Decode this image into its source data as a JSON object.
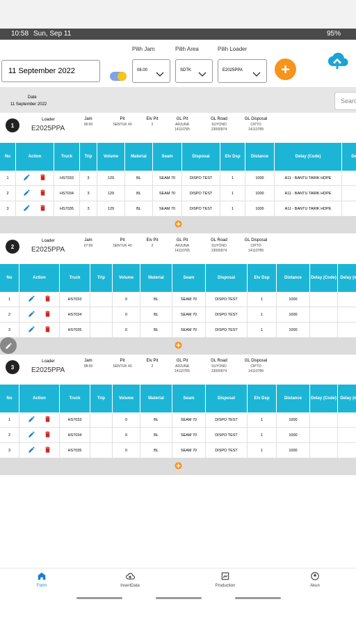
{
  "status_bar": {
    "time": "10:58",
    "date": "Sun, Sep 11",
    "battery": "95%"
  },
  "filters": {
    "date": "11 September 2022",
    "jam_label": "Pilih Jam",
    "jam": "08.00",
    "area_label": "Pilih Area",
    "area": "SDTK",
    "loader_label": "Pilih Loader",
    "loader": "E2025PPA"
  },
  "info_bar": {
    "date_label": "Date",
    "date": "11 September 2022",
    "search_placeholder": "Search"
  },
  "columns": [
    "No",
    "Action",
    "Truck",
    "Trip",
    "Volume",
    "Material",
    "Seam",
    "Disposal",
    "Elv Dsp",
    "Distance",
    "Delay (Code)",
    "Delay (min)"
  ],
  "sections": [
    {
      "number": 1,
      "loader_label": "Loader",
      "loader": "E2025PPA",
      "fields": [
        {
          "label": "Jam",
          "lines": [
            "06:00"
          ]
        },
        {
          "label": "Pit",
          "lines": [
            "SENTUK 40"
          ]
        },
        {
          "label": "Elv Pit",
          "lines": [
            "2"
          ]
        },
        {
          "label": "GL Pit",
          "lines": [
            "ARJUNA",
            "14110765"
          ]
        },
        {
          "label": "GL Road",
          "lines": [
            "SUYONO",
            "23000974"
          ]
        },
        {
          "label": "GL Disposal",
          "lines": [
            "CIPTO",
            "14110789"
          ]
        }
      ],
      "rows": [
        {
          "no": 1,
          "truck": "HS7033",
          "trip": 3,
          "volume": 129,
          "material": "BL",
          "seam": "SEAM 70",
          "disposal": "DISPO TEST",
          "elv_dsp": 1,
          "distance": 1000,
          "delay_code": "A11 - BANTU TARIK HDPE"
        },
        {
          "no": 2,
          "truck": "HS7034",
          "trip": 3,
          "volume": 129,
          "material": "BL",
          "seam": "SEAM 70",
          "disposal": "DISPO TEST",
          "elv_dsp": 1,
          "distance": 1000,
          "delay_code": "A11 - BANTU TARIK HDPE"
        },
        {
          "no": 3,
          "truck": "HS7035",
          "trip": 3,
          "volume": 129,
          "material": "BL",
          "seam": "SEAM 70",
          "disposal": "DISPO TEST",
          "elv_dsp": 1,
          "distance": 1000,
          "delay_code": "A11 - BANTU TARIK HDPE"
        }
      ]
    },
    {
      "number": 2,
      "loader_label": "Loader",
      "loader": "E2025PPA",
      "fields": [
        {
          "label": "Jam",
          "lines": [
            "07:00"
          ]
        },
        {
          "label": "Pit",
          "lines": [
            "SENTUK 40"
          ]
        },
        {
          "label": "Elv Pit",
          "lines": [
            "2"
          ]
        },
        {
          "label": "GL Pit",
          "lines": [
            "ARJUNA",
            "14110765"
          ]
        },
        {
          "label": "GL Road",
          "lines": [
            "SUYONO",
            "23000974"
          ]
        },
        {
          "label": "GL Disposal",
          "lines": [
            "CIPTO",
            "14110789"
          ]
        }
      ],
      "rows": [
        {
          "no": 1,
          "truck": "HS7033",
          "trip": null,
          "volume": 0,
          "material": "BL",
          "seam": "SEAM 70",
          "disposal": "DISPO TEST",
          "elv_dsp": 1,
          "distance": 1000,
          "delay_code": null
        },
        {
          "no": 2,
          "truck": "HS7034",
          "trip": null,
          "volume": 0,
          "material": "BL",
          "seam": "SEAM 70",
          "disposal": "DISPO TEST",
          "elv_dsp": 1,
          "distance": 1000,
          "delay_code": null
        },
        {
          "no": 3,
          "truck": "HS7035",
          "trip": null,
          "volume": 0,
          "material": "BL",
          "seam": "SEAM 70",
          "disposal": "DISPO TEST",
          "elv_dsp": 1,
          "distance": 1000,
          "delay_code": null
        }
      ]
    },
    {
      "number": 3,
      "loader_label": "Loader",
      "loader": "E2025PPA",
      "fields": [
        {
          "label": "Jam",
          "lines": [
            "08:00"
          ]
        },
        {
          "label": "Pit",
          "lines": [
            "SENTUK 40"
          ]
        },
        {
          "label": "Elv Pit",
          "lines": [
            "2"
          ]
        },
        {
          "label": "GL Pit",
          "lines": [
            "ARJUNA",
            "14110765"
          ]
        },
        {
          "label": "GL Road",
          "lines": [
            "SUYONO",
            "23000974"
          ]
        },
        {
          "label": "GL Disposal",
          "lines": [
            "CIPTO",
            "14110789"
          ]
        }
      ],
      "rows": [
        {
          "no": 1,
          "truck": "HS7033",
          "trip": null,
          "volume": 0,
          "material": "BL",
          "seam": "SEAM 70",
          "disposal": "DISPO TEST",
          "elv_dsp": 1,
          "distance": 1000,
          "delay_code": null
        },
        {
          "no": 2,
          "truck": "HS7034",
          "trip": null,
          "volume": 0,
          "material": "BL",
          "seam": "SEAM 70",
          "disposal": "DISPO TEST",
          "elv_dsp": 1,
          "distance": 1000,
          "delay_code": null
        },
        {
          "no": 3,
          "truck": "HS7035",
          "trip": null,
          "volume": 0,
          "material": "BL",
          "seam": "SEAM 70",
          "disposal": "DISPO TEST",
          "elv_dsp": 1,
          "distance": 1000,
          "delay_code": null
        }
      ]
    }
  ],
  "nav": [
    "Form",
    "InsertData",
    "Production",
    "Akun"
  ]
}
